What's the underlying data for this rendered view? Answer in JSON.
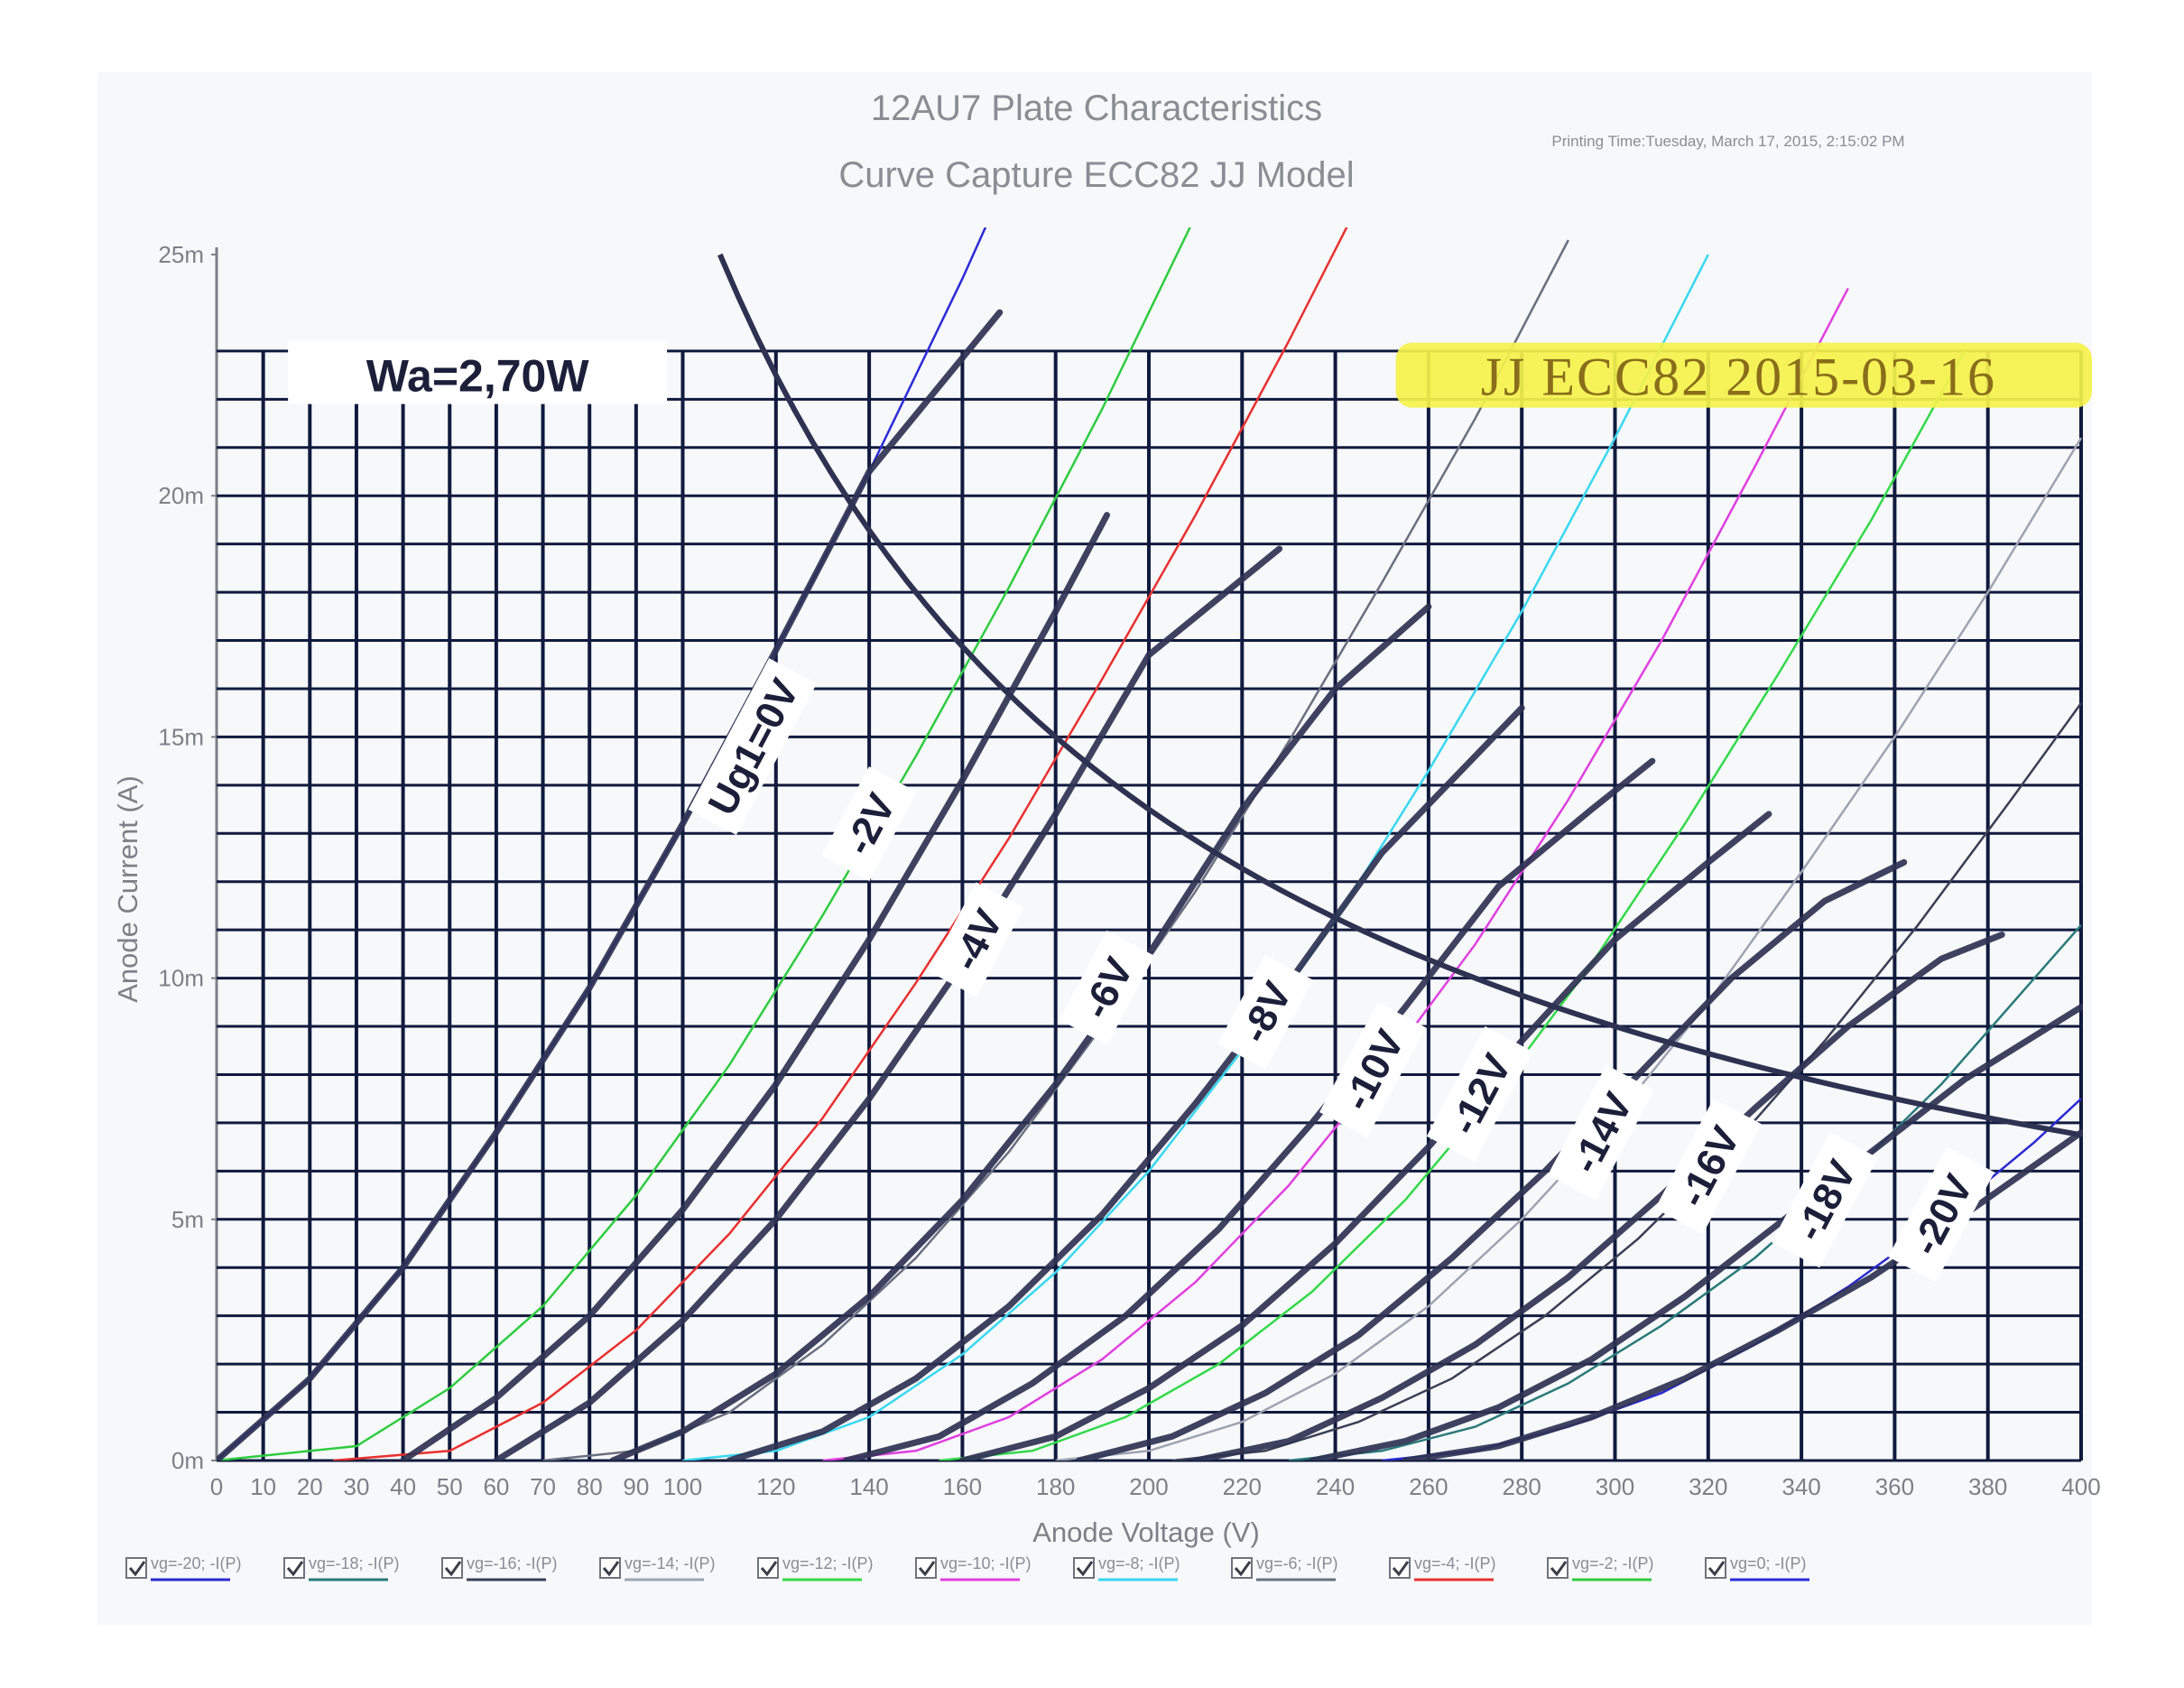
{
  "chart_data": {
    "type": "line",
    "title": "12AU7 Plate Characteristics",
    "subtitle": "Curve Capture ECC82 JJ Model",
    "printing_time": "Printing Time:Tuesday, March 17, 2015, 2:15:02 PM",
    "xlabel": "Anode Voltage (V)",
    "ylabel": "Anode Current (A)",
    "xlim": [
      0,
      400
    ],
    "ylim": [
      0,
      0.025
    ],
    "x_ticks": [
      0,
      10,
      20,
      30,
      40,
      50,
      60,
      70,
      80,
      90,
      100,
      120,
      140,
      160,
      180,
      200,
      220,
      240,
      260,
      280,
      300,
      320,
      340,
      360,
      380,
      400
    ],
    "x_tick_labels": [
      "0",
      "10",
      "20",
      "30",
      "40",
      "50",
      "60",
      "70",
      "80",
      "90",
      "100",
      "120",
      "140",
      "160",
      "180",
      "200",
      "220",
      "240",
      "260",
      "280",
      "300",
      "320",
      "340",
      "360",
      "380",
      "400"
    ],
    "y_ticks": [
      0,
      0.005,
      0.01,
      0.015,
      0.02,
      0.025
    ],
    "y_tick_labels": [
      "0m",
      "5m",
      "10m",
      "15m",
      "20m",
      "25m"
    ],
    "grid": true,
    "power_label": "Wa=2,70W",
    "stamp_label": "JJ ECC82 2015-03-16",
    "power_hyperbola_watts": 2.7,
    "series": [
      {
        "name": "vg=0; -I(P)",
        "grid_voltage": 0,
        "color": "#2b2bd6",
        "points": [
          [
            0,
            0
          ],
          [
            20,
            0.0017
          ],
          [
            40,
            0.004
          ],
          [
            60,
            0.0068
          ],
          [
            80,
            0.0098
          ],
          [
            100,
            0.0132
          ],
          [
            120,
            0.0168
          ],
          [
            140,
            0.0205
          ],
          [
            160,
            0.0245
          ],
          [
            180,
            0.0288
          ]
        ]
      },
      {
        "name": "vg=-2; -I(P)",
        "grid_voltage": -2,
        "color": "#2ecc40",
        "points": [
          [
            0,
            0
          ],
          [
            30,
            0.0003
          ],
          [
            50,
            0.0015
          ],
          [
            70,
            0.0032
          ],
          [
            90,
            0.0055
          ],
          [
            110,
            0.0082
          ],
          [
            130,
            0.0113
          ],
          [
            150,
            0.0146
          ],
          [
            170,
            0.0181
          ],
          [
            190,
            0.0218
          ],
          [
            210,
            0.0258
          ]
        ]
      },
      {
        "name": "vg=-4; -I(P)",
        "grid_voltage": -4,
        "color": "#e83030",
        "points": [
          [
            25,
            0
          ],
          [
            50,
            0.0002
          ],
          [
            70,
            0.0012
          ],
          [
            90,
            0.0027
          ],
          [
            110,
            0.0047
          ],
          [
            130,
            0.0071
          ],
          [
            150,
            0.0099
          ],
          [
            170,
            0.0129
          ],
          [
            190,
            0.0162
          ],
          [
            210,
            0.0196
          ],
          [
            230,
            0.0232
          ],
          [
            250,
            0.027
          ]
        ]
      },
      {
        "name": "vg=-6; -I(P)",
        "grid_voltage": -6,
        "color": "#6a6f80",
        "points": [
          [
            70,
            0
          ],
          [
            90,
            0.0002
          ],
          [
            110,
            0.001
          ],
          [
            130,
            0.0024
          ],
          [
            150,
            0.0042
          ],
          [
            170,
            0.0064
          ],
          [
            190,
            0.009
          ],
          [
            210,
            0.0118
          ],
          [
            230,
            0.0149
          ],
          [
            250,
            0.0182
          ],
          [
            270,
            0.0216
          ],
          [
            290,
            0.0253
          ]
        ]
      },
      {
        "name": "vg=-8; -I(P)",
        "grid_voltage": -8,
        "color": "#39d8f0",
        "points": [
          [
            100,
            0
          ],
          [
            120,
            0.0002
          ],
          [
            140,
            0.0009
          ],
          [
            160,
            0.0022
          ],
          [
            180,
            0.0039
          ],
          [
            200,
            0.006
          ],
          [
            220,
            0.0085
          ],
          [
            240,
            0.0112
          ],
          [
            260,
            0.0143
          ],
          [
            280,
            0.0176
          ],
          [
            300,
            0.0212
          ],
          [
            320,
            0.025
          ]
        ]
      },
      {
        "name": "vg=-10; -I(P)",
        "grid_voltage": -10,
        "color": "#e040e0",
        "points": [
          [
            130,
            0
          ],
          [
            150,
            0.0002
          ],
          [
            170,
            0.0009
          ],
          [
            190,
            0.0021
          ],
          [
            210,
            0.0037
          ],
          [
            230,
            0.0057
          ],
          [
            250,
            0.0081
          ],
          [
            270,
            0.0107
          ],
          [
            290,
            0.0137
          ],
          [
            310,
            0.017
          ],
          [
            330,
            0.0206
          ],
          [
            350,
            0.0243
          ]
        ]
      },
      {
        "name": "vg=-12; -I(P)",
        "grid_voltage": -12,
        "color": "#33d94a",
        "points": [
          [
            155,
            0
          ],
          [
            175,
            0.0002
          ],
          [
            195,
            0.0009
          ],
          [
            215,
            0.002
          ],
          [
            235,
            0.0035
          ],
          [
            255,
            0.0054
          ],
          [
            275,
            0.0077
          ],
          [
            295,
            0.0103
          ],
          [
            315,
            0.0132
          ],
          [
            335,
            0.0163
          ],
          [
            355,
            0.0195
          ],
          [
            375,
            0.023
          ]
        ]
      },
      {
        "name": "vg=-14; -I(P)",
        "grid_voltage": -14,
        "color": "#9ea3b2",
        "points": [
          [
            180,
            0
          ],
          [
            200,
            0.0002
          ],
          [
            220,
            0.0008
          ],
          [
            240,
            0.0018
          ],
          [
            260,
            0.0032
          ],
          [
            280,
            0.005
          ],
          [
            300,
            0.0071
          ],
          [
            320,
            0.0095
          ],
          [
            340,
            0.0122
          ],
          [
            360,
            0.015
          ],
          [
            380,
            0.018
          ],
          [
            400,
            0.0212
          ]
        ]
      },
      {
        "name": "vg=-16; -I(P)",
        "grid_voltage": -16,
        "color": "#3a3f55",
        "points": [
          [
            205,
            0
          ],
          [
            225,
            0.0002
          ],
          [
            245,
            0.0008
          ],
          [
            265,
            0.0017
          ],
          [
            285,
            0.003
          ],
          [
            305,
            0.0046
          ],
          [
            325,
            0.0065
          ],
          [
            345,
            0.0087
          ],
          [
            365,
            0.0111
          ],
          [
            385,
            0.0137
          ],
          [
            400,
            0.0157
          ]
        ]
      },
      {
        "name": "vg=-18; -I(P)",
        "grid_voltage": -18,
        "color": "#2a7a7a",
        "points": [
          [
            230,
            0
          ],
          [
            250,
            0.0002
          ],
          [
            270,
            0.0007
          ],
          [
            290,
            0.0016
          ],
          [
            310,
            0.0028
          ],
          [
            330,
            0.0042
          ],
          [
            350,
            0.0059
          ],
          [
            370,
            0.0078
          ],
          [
            390,
            0.01
          ],
          [
            400,
            0.0111
          ]
        ]
      },
      {
        "name": "vg=-20; -I(P)",
        "grid_voltage": -20,
        "color": "#2a2ad0",
        "points": [
          [
            250,
            0
          ],
          [
            270,
            0.0002
          ],
          [
            290,
            0.0007
          ],
          [
            310,
            0.0014
          ],
          [
            330,
            0.0024
          ],
          [
            350,
            0.0036
          ],
          [
            370,
            0.005
          ],
          [
            390,
            0.0066
          ],
          [
            400,
            0.0075
          ]
        ]
      }
    ],
    "overlay_curves": [
      {
        "label": "Ug1=0V",
        "points": [
          [
            0,
            0
          ],
          [
            20,
            0.0017
          ],
          [
            40,
            0.004
          ],
          [
            60,
            0.0068
          ],
          [
            80,
            0.0098
          ],
          [
            100,
            0.0132
          ],
          [
            120,
            0.0168
          ],
          [
            140,
            0.0205
          ],
          [
            168,
            0.0238
          ]
        ]
      },
      {
        "label": "-2V",
        "points": [
          [
            40,
            0
          ],
          [
            60,
            0.0013
          ],
          [
            80,
            0.003
          ],
          [
            100,
            0.0052
          ],
          [
            120,
            0.0078
          ],
          [
            140,
            0.0108
          ],
          [
            160,
            0.0141
          ],
          [
            180,
            0.0176
          ],
          [
            191,
            0.0196
          ]
        ]
      },
      {
        "label": "-4V",
        "points": [
          [
            60,
            0
          ],
          [
            80,
            0.0012
          ],
          [
            100,
            0.0029
          ],
          [
            120,
            0.005
          ],
          [
            140,
            0.0075
          ],
          [
            160,
            0.0103
          ],
          [
            180,
            0.0134
          ],
          [
            200,
            0.0167
          ],
          [
            228,
            0.0189
          ]
        ]
      },
      {
        "label": "-6V",
        "points": [
          [
            85,
            0
          ],
          [
            100,
            0.0006
          ],
          [
            120,
            0.0018
          ],
          [
            140,
            0.0034
          ],
          [
            160,
            0.0054
          ],
          [
            180,
            0.0078
          ],
          [
            200,
            0.0105
          ],
          [
            220,
            0.0135
          ],
          [
            240,
            0.016
          ],
          [
            260,
            0.0177
          ]
        ]
      },
      {
        "label": "-8V",
        "points": [
          [
            110,
            0
          ],
          [
            130,
            0.0006
          ],
          [
            150,
            0.0017
          ],
          [
            170,
            0.0032
          ],
          [
            190,
            0.0051
          ],
          [
            210,
            0.0074
          ],
          [
            230,
            0.0099
          ],
          [
            250,
            0.0126
          ],
          [
            280,
            0.0156
          ]
        ]
      },
      {
        "label": "-10V",
        "points": [
          [
            135,
            0
          ],
          [
            155,
            0.0005
          ],
          [
            175,
            0.0016
          ],
          [
            195,
            0.003
          ],
          [
            215,
            0.0048
          ],
          [
            235,
            0.007
          ],
          [
            255,
            0.0094
          ],
          [
            275,
            0.0119
          ],
          [
            295,
            0.0135
          ],
          [
            308,
            0.0145
          ]
        ]
      },
      {
        "label": "-12V",
        "points": [
          [
            160,
            0
          ],
          [
            180,
            0.0005
          ],
          [
            200,
            0.0015
          ],
          [
            220,
            0.0028
          ],
          [
            240,
            0.0045
          ],
          [
            260,
            0.0065
          ],
          [
            280,
            0.0087
          ],
          [
            300,
            0.0108
          ],
          [
            320,
            0.0124
          ],
          [
            333,
            0.0134
          ]
        ]
      },
      {
        "label": "-14V",
        "points": [
          [
            185,
            0
          ],
          [
            205,
            0.0005
          ],
          [
            225,
            0.0014
          ],
          [
            245,
            0.0026
          ],
          [
            265,
            0.0042
          ],
          [
            285,
            0.006
          ],
          [
            305,
            0.008
          ],
          [
            325,
            0.01
          ],
          [
            345,
            0.0116
          ],
          [
            362,
            0.0124
          ]
        ]
      },
      {
        "label": "-16V",
        "points": [
          [
            210,
            0
          ],
          [
            230,
            0.0004
          ],
          [
            250,
            0.0013
          ],
          [
            270,
            0.0024
          ],
          [
            290,
            0.0038
          ],
          [
            310,
            0.0055
          ],
          [
            330,
            0.0073
          ],
          [
            350,
            0.009
          ],
          [
            370,
            0.0104
          ],
          [
            383,
            0.0109
          ]
        ]
      },
      {
        "label": "-18V",
        "points": [
          [
            235,
            0
          ],
          [
            255,
            0.0004
          ],
          [
            275,
            0.0011
          ],
          [
            295,
            0.0021
          ],
          [
            315,
            0.0034
          ],
          [
            335,
            0.0049
          ],
          [
            355,
            0.0064
          ],
          [
            375,
            0.0079
          ],
          [
            400,
            0.0094
          ]
        ]
      },
      {
        "label": "-20V",
        "points": [
          [
            255,
            0
          ],
          [
            275,
            0.0003
          ],
          [
            295,
            0.0009
          ],
          [
            315,
            0.0017
          ],
          [
            335,
            0.0027
          ],
          [
            355,
            0.0038
          ],
          [
            375,
            0.0051
          ],
          [
            400,
            0.0068
          ]
        ]
      }
    ],
    "legend": [
      {
        "label": "vg=-20; -I(P)",
        "color": "#2a2ad0",
        "checked": true
      },
      {
        "label": "vg=-18; -I(P)",
        "color": "#2a7a7a",
        "checked": true
      },
      {
        "label": "vg=-16; -I(P)",
        "color": "#3a3f55",
        "checked": true
      },
      {
        "label": "vg=-14; -I(P)",
        "color": "#9ea3b2",
        "checked": true
      },
      {
        "label": "vg=-12; -I(P)",
        "color": "#33d94a",
        "checked": true
      },
      {
        "label": "vg=-10; -I(P)",
        "color": "#e040e0",
        "checked": true
      },
      {
        "label": "vg=-8; -I(P)",
        "color": "#39d8f0",
        "checked": true
      },
      {
        "label": "vg=-6; -I(P)",
        "color": "#6a6f80",
        "checked": true
      },
      {
        "label": "vg=-4; -I(P)",
        "color": "#e83030",
        "checked": true
      },
      {
        "label": "vg=-2; -I(P)",
        "color": "#2ecc40",
        "checked": true
      },
      {
        "label": "vg=0; -I(P)",
        "color": "#2b2bd6",
        "checked": true
      }
    ],
    "legend_position": "bottom",
    "colors": {
      "grid": "#101a3e",
      "overlay": "#2e3252",
      "stamp_bg": "#f4f24a",
      "stamp_text": "#8a6d1a"
    }
  }
}
